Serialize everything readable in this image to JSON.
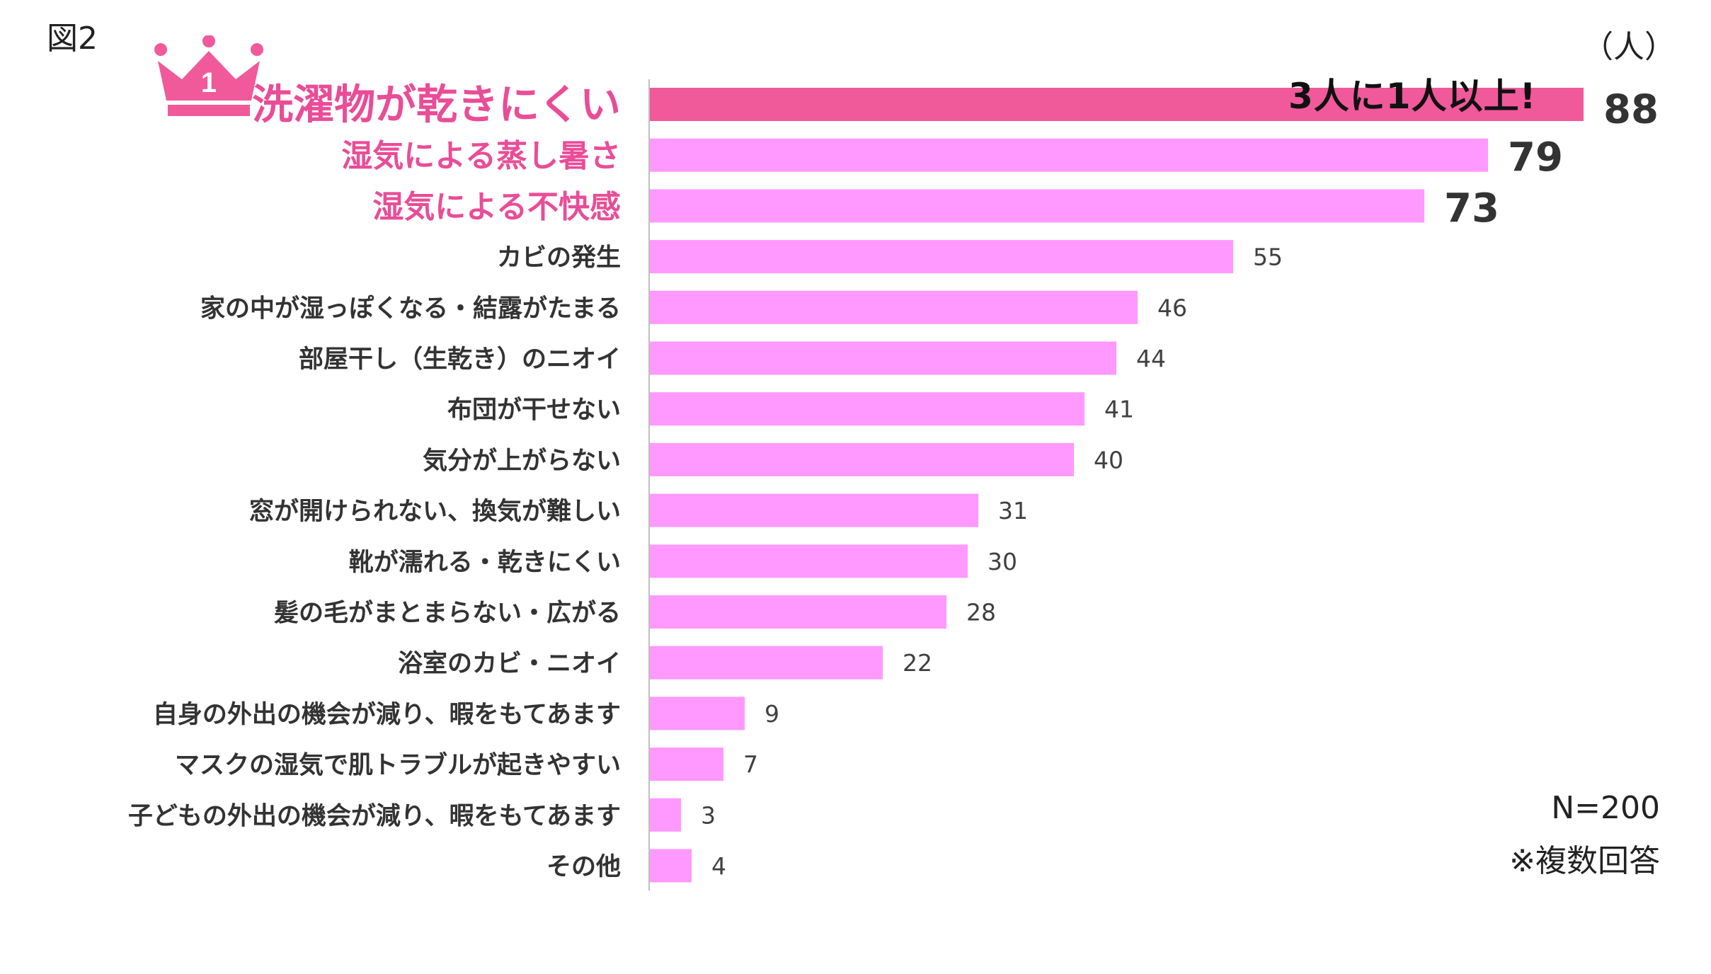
{
  "figure_label": "図2",
  "unit": "（人）",
  "callout": "3人に1人以上!",
  "sample": "N=200",
  "note": "※複数回答",
  "rank_badge": "1",
  "colors": {
    "top_bar": "#f0599a",
    "bar": "#ff99ff",
    "highlight_label": "#ea4c97",
    "axis": "#bfbfbf"
  },
  "chart_data": {
    "type": "bar",
    "orientation": "horizontal",
    "title": "",
    "xlabel": "",
    "ylabel": "",
    "unit": "（人）",
    "xlim": [
      0,
      100
    ],
    "grid": false,
    "legend": "none",
    "categories": [
      "洗濯物が乾きにくい",
      "湿気による蒸し暑さ",
      "湿気による不快感",
      "カビの発生",
      "家の中が湿っぽくなる・結露がたまる",
      "部屋干し（生乾き）のニオイ",
      "布団が干せない",
      "気分が上がらない",
      "窓が開けられない、換気が難しい",
      "靴が濡れる・乾きにくい",
      "髪の毛がまとまらない・広がる",
      "浴室のカビ・ニオイ",
      "自身の外出の機会が減り、暇をもてあます",
      "マスクの湿気で肌トラブルが起きやすい",
      "子どもの外出の機会が減り、暇をもてあます",
      "その他"
    ],
    "values": [
      88,
      79,
      73,
      55,
      46,
      44,
      41,
      40,
      31,
      30,
      28,
      22,
      9,
      7,
      3,
      4
    ],
    "highlighted": [
      true,
      true,
      true,
      false,
      false,
      false,
      false,
      false,
      false,
      false,
      false,
      false,
      false,
      false,
      false,
      false
    ]
  }
}
